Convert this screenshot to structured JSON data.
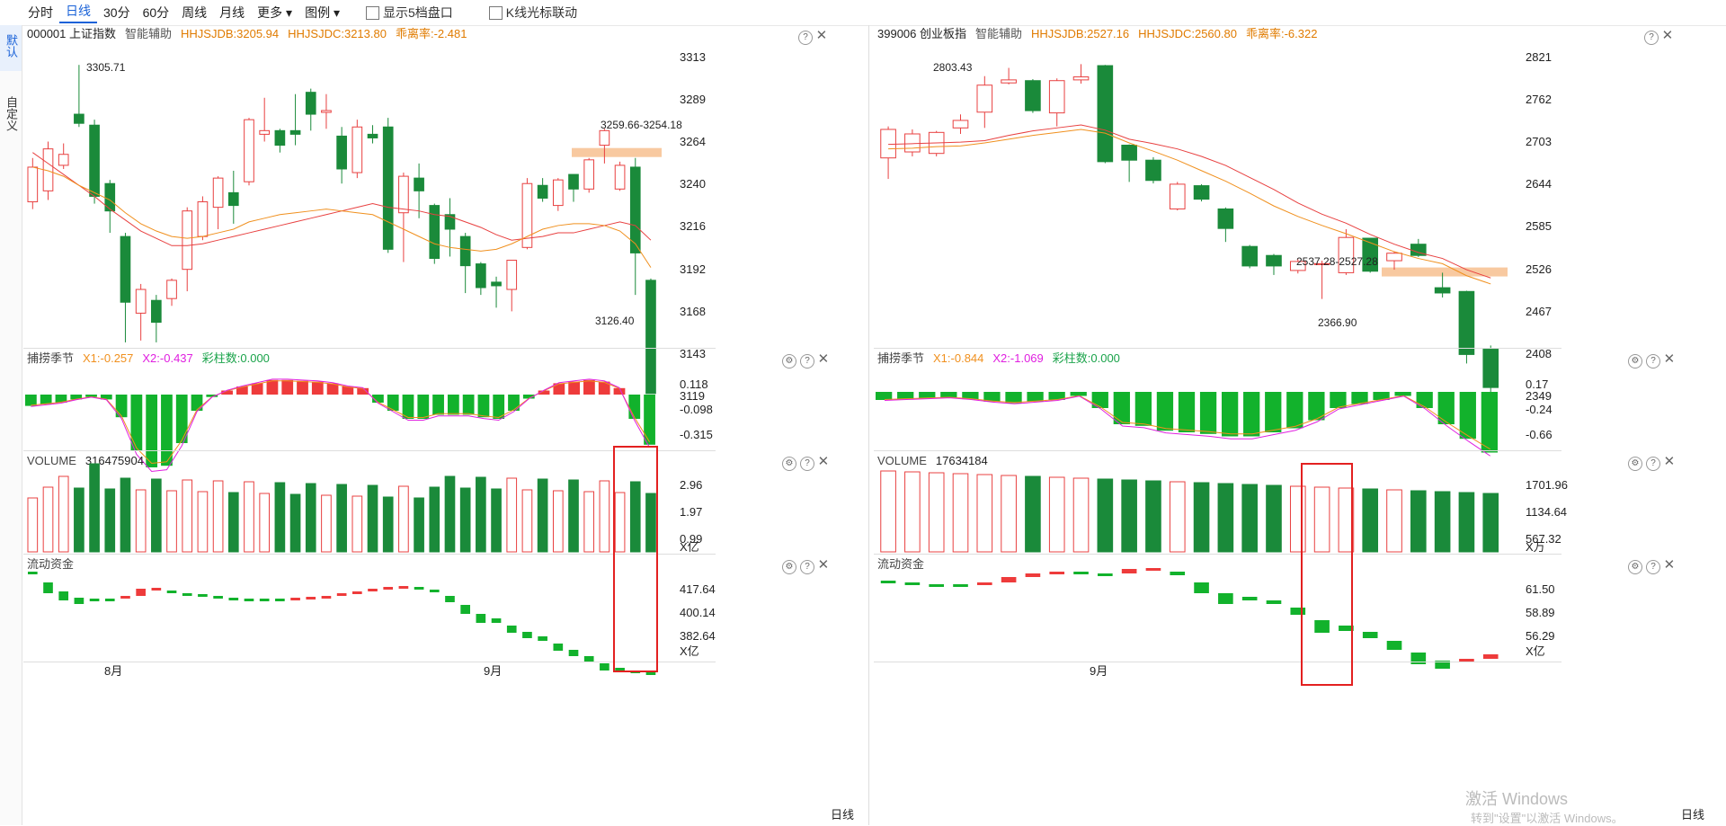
{
  "toolbar": {
    "periods": [
      "分时",
      "日线",
      "30分",
      "60分",
      "周线",
      "月线"
    ],
    "more": "更多 ▾",
    "legend": "图例 ▾",
    "show5": "显示5档盘口",
    "klinelink": "K线光标联动"
  },
  "sidebar": {
    "default_label": "默认",
    "custom_label": "自定义"
  },
  "left": {
    "code": "000001 上证指数",
    "assist": "智能辅助",
    "jdb": "HHJSJDB:3205.94",
    "jdc": "HHJSJDC:3213.80",
    "rate": "乖离率:-2.481",
    "price_ticks": [
      "3313",
      "3289",
      "3264",
      "3240",
      "3216",
      "3192",
      "3168",
      "3143",
      "3119"
    ],
    "high_label": "3305.71",
    "low_label": "3126.40",
    "range_label": "3259.66-3254.18",
    "ind1": {
      "name": "捕捞季节",
      "x1": "X1:-0.257",
      "x2": "X2:-0.437",
      "cz": "彩柱数:0.000",
      "ticks": [
        "0.118",
        "-0.098",
        "-0.315"
      ]
    },
    "vol": {
      "name": "VOLUME",
      "value": "316475904",
      "ticks": [
        "2.96",
        "1.97",
        "0.99"
      ],
      "unit": "X亿"
    },
    "flow": {
      "name": "流动资金",
      "ticks": [
        "417.64",
        "400.14",
        "382.64"
      ],
      "unit": "X亿"
    },
    "months": [
      "8月",
      "9月"
    ]
  },
  "right": {
    "code": "399006 创业板指",
    "assist": "智能辅助",
    "jdb": "HHJSJDB:2527.16",
    "jdc": "HHJSJDC:2560.80",
    "rate": "乖离率:-6.322",
    "price_ticks": [
      "2821",
      "2762",
      "2703",
      "2644",
      "2585",
      "2526",
      "2467",
      "2408",
      "2349"
    ],
    "high_label": "2803.43",
    "low_label": "2366.90",
    "range_label": "2537.28-2527.28",
    "ind1": {
      "name": "捕捞季节",
      "x1": "X1:-0.844",
      "x2": "X2:-1.069",
      "cz": "彩柱数:0.000",
      "ticks": [
        "0.17",
        "-0.24",
        "-0.66"
      ]
    },
    "vol": {
      "name": "VOLUME",
      "value": "17634184",
      "ticks": [
        "1701.96",
        "1134.64",
        "567.32"
      ],
      "unit": "X万"
    },
    "flow": {
      "name": "流动资金",
      "ticks": [
        "61.50",
        "58.89",
        "56.29"
      ],
      "unit": "X亿"
    },
    "months": [
      "9月"
    ]
  },
  "bottom_tag": "日线",
  "watermark": {
    "line1": "激活 Windows",
    "line2": "转到\"设置\"以激活 Windows。"
  },
  "colors": {
    "up": "#e84040",
    "down": "#1a8a3a",
    "ma1": "#e84040",
    "ma2": "#f0901e",
    "x1": "#f0901e",
    "x2": "#e020e0",
    "highlight": "#f8c9a0"
  },
  "chart_data": [
    {
      "type": "candlestick",
      "title": "000001 上证指数",
      "ylim": [
        3119,
        3313
      ],
      "candles": [
        {
          "o": 3231,
          "c": 3250,
          "h": 3255,
          "l": 3227
        },
        {
          "o": 3237,
          "c": 3260,
          "h": 3264,
          "l": 3232
        },
        {
          "o": 3251,
          "c": 3257,
          "h": 3263,
          "l": 3249
        },
        {
          "o": 3279,
          "c": 3274,
          "h": 3306,
          "l": 3272
        },
        {
          "o": 3273,
          "c": 3234,
          "h": 3276,
          "l": 3230
        },
        {
          "o": 3241,
          "c": 3226,
          "h": 3243,
          "l": 3214
        },
        {
          "o": 3212,
          "c": 3176,
          "h": 3214,
          "l": 3154
        },
        {
          "o": 3170,
          "c": 3183,
          "h": 3186,
          "l": 3155
        },
        {
          "o": 3177,
          "c": 3165,
          "h": 3180,
          "l": 3154
        },
        {
          "o": 3178,
          "c": 3188,
          "h": 3189,
          "l": 3174
        },
        {
          "o": 3194,
          "c": 3226,
          "h": 3228,
          "l": 3182
        },
        {
          "o": 3212,
          "c": 3231,
          "h": 3234,
          "l": 3210
        },
        {
          "o": 3228,
          "c": 3244,
          "h": 3245,
          "l": 3216
        },
        {
          "o": 3236,
          "c": 3229,
          "h": 3248,
          "l": 3219
        },
        {
          "o": 3242,
          "c": 3276,
          "h": 3277,
          "l": 3240
        },
        {
          "o": 3268,
          "c": 3270,
          "h": 3288,
          "l": 3264
        },
        {
          "o": 3270,
          "c": 3262,
          "h": 3271,
          "l": 3258
        },
        {
          "o": 3270,
          "c": 3268,
          "h": 3290,
          "l": 3262
        },
        {
          "o": 3291,
          "c": 3279,
          "h": 3293,
          "l": 3270
        },
        {
          "o": 3280,
          "c": 3281,
          "h": 3290,
          "l": 3271
        },
        {
          "o": 3267,
          "c": 3249,
          "h": 3272,
          "l": 3241
        },
        {
          "o": 3247,
          "c": 3272,
          "h": 3276,
          "l": 3244
        },
        {
          "o": 3268,
          "c": 3266,
          "h": 3273,
          "l": 3263
        },
        {
          "o": 3272,
          "c": 3205,
          "h": 3277,
          "l": 3203
        },
        {
          "o": 3225,
          "c": 3245,
          "h": 3247,
          "l": 3198
        },
        {
          "o": 3244,
          "c": 3237,
          "h": 3252,
          "l": 3222
        },
        {
          "o": 3229,
          "c": 3200,
          "h": 3230,
          "l": 3197
        },
        {
          "o": 3224,
          "c": 3216,
          "h": 3233,
          "l": 3201
        },
        {
          "o": 3212,
          "c": 3196,
          "h": 3214,
          "l": 3181
        },
        {
          "o": 3197,
          "c": 3184,
          "h": 3198,
          "l": 3180
        },
        {
          "o": 3187,
          "c": 3185,
          "h": 3190,
          "l": 3173
        },
        {
          "o": 3183,
          "c": 3199,
          "h": 3199,
          "l": 3171
        },
        {
          "o": 3206,
          "c": 3241,
          "h": 3244,
          "l": 3205
        },
        {
          "o": 3240,
          "c": 3233,
          "h": 3244,
          "l": 3231
        },
        {
          "o": 3229,
          "c": 3243,
          "h": 3244,
          "l": 3226
        },
        {
          "o": 3246,
          "c": 3238,
          "h": 3246,
          "l": 3231
        },
        {
          "o": 3238,
          "c": 3254,
          "h": 3255,
          "l": 3236
        },
        {
          "o": 3262,
          "c": 3270,
          "h": 3271,
          "l": 3252
        },
        {
          "o": 3238,
          "c": 3251,
          "h": 3253,
          "l": 3237
        },
        {
          "o": 3250,
          "c": 3203,
          "h": 3255,
          "l": 3180
        },
        {
          "o": 3188,
          "c": 3126,
          "h": 3189,
          "l": 3126
        }
      ],
      "ma1": [
        3258,
        3252,
        3246,
        3240,
        3234,
        3227,
        3221,
        3215,
        3211,
        3207,
        3207,
        3208,
        3210,
        3212,
        3214,
        3216,
        3218,
        3220,
        3222,
        3224,
        3226,
        3228,
        3230,
        3228,
        3227,
        3226,
        3224,
        3223,
        3220,
        3217,
        3213,
        3210,
        3211,
        3212,
        3214,
        3214,
        3216,
        3218,
        3220,
        3218,
        3210
      ],
      "ma2": [
        3250,
        3248,
        3245,
        3240,
        3236,
        3232,
        3225,
        3219,
        3215,
        3212,
        3211,
        3212,
        3214,
        3216,
        3220,
        3222,
        3224,
        3225,
        3226,
        3227,
        3226,
        3225,
        3224,
        3220,
        3216,
        3212,
        3208,
        3206,
        3205,
        3204,
        3205,
        3208,
        3212,
        3216,
        3218,
        3219,
        3219,
        3218,
        3215,
        3208,
        3195
      ]
    },
    {
      "type": "candlestick",
      "title": "399006 创业板指",
      "ylim": [
        2349,
        2821
      ],
      "candles": [
        {
          "o": 2680,
          "c": 2718,
          "h": 2722,
          "l": 2652
        },
        {
          "o": 2688,
          "c": 2712,
          "h": 2718,
          "l": 2682
        },
        {
          "o": 2686,
          "c": 2714,
          "h": 2716,
          "l": 2682
        },
        {
          "o": 2720,
          "c": 2730,
          "h": 2738,
          "l": 2712
        },
        {
          "o": 2741,
          "c": 2777,
          "h": 2789,
          "l": 2720
        },
        {
          "o": 2780,
          "c": 2784,
          "h": 2800,
          "l": 2778
        },
        {
          "o": 2783,
          "c": 2743,
          "h": 2785,
          "l": 2740
        },
        {
          "o": 2740,
          "c": 2783,
          "h": 2786,
          "l": 2722
        },
        {
          "o": 2784,
          "c": 2788,
          "h": 2805,
          "l": 2779
        },
        {
          "o": 2803,
          "c": 2675,
          "h": 2804,
          "l": 2673
        },
        {
          "o": 2697,
          "c": 2677,
          "h": 2698,
          "l": 2648
        },
        {
          "o": 2677,
          "c": 2650,
          "h": 2681,
          "l": 2646
        },
        {
          "o": 2612,
          "c": 2645,
          "h": 2648,
          "l": 2610
        },
        {
          "o": 2643,
          "c": 2625,
          "h": 2645,
          "l": 2622
        },
        {
          "o": 2612,
          "c": 2586,
          "h": 2614,
          "l": 2568
        },
        {
          "o": 2562,
          "c": 2536,
          "h": 2564,
          "l": 2533
        },
        {
          "o": 2550,
          "c": 2536,
          "h": 2552,
          "l": 2524
        },
        {
          "o": 2530,
          "c": 2542,
          "h": 2545,
          "l": 2526
        },
        {
          "o": 2538,
          "c": 2539,
          "h": 2543,
          "l": 2492
        },
        {
          "o": 2527,
          "c": 2574,
          "h": 2585,
          "l": 2524
        },
        {
          "o": 2573,
          "c": 2529,
          "h": 2573,
          "l": 2527
        },
        {
          "o": 2543,
          "c": 2553,
          "h": 2555,
          "l": 2531
        },
        {
          "o": 2565,
          "c": 2550,
          "h": 2572,
          "l": 2548
        },
        {
          "o": 2507,
          "c": 2500,
          "h": 2527,
          "l": 2494
        },
        {
          "o": 2502,
          "c": 2418,
          "h": 2503,
          "l": 2406
        },
        {
          "o": 2425,
          "c": 2374,
          "h": 2430,
          "l": 2366
        }
      ],
      "ma1": [
        2698,
        2699,
        2700,
        2701,
        2703,
        2710,
        2716,
        2720,
        2724,
        2717,
        2705,
        2699,
        2692,
        2682,
        2670,
        2654,
        2638,
        2620,
        2605,
        2593,
        2578,
        2565,
        2554,
        2546,
        2531,
        2520
      ],
      "ma2": [
        2692,
        2693,
        2695,
        2696,
        2700,
        2705,
        2710,
        2714,
        2718,
        2713,
        2700,
        2689,
        2677,
        2663,
        2649,
        2633,
        2616,
        2602,
        2590,
        2579,
        2567,
        2555,
        2546,
        2539,
        2523,
        2512
      ]
    }
  ]
}
